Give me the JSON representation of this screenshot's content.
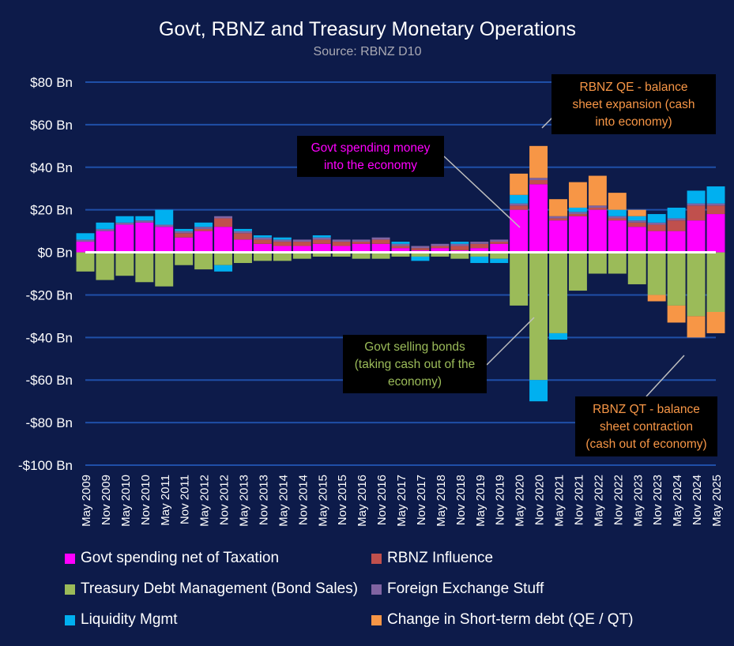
{
  "chart_data": {
    "type": "area",
    "title": "Govt, RBNZ and Treasury Monetary Operations",
    "subtitle": "Source: RBNZ D10",
    "ylabel": "",
    "xlabel": "",
    "ylim": [
      -100,
      80
    ],
    "ytick_values": [
      80,
      60,
      40,
      20,
      0,
      -20,
      -40,
      -60,
      -80,
      -100
    ],
    "ytick_labels": [
      "$80 Bn",
      "$60 Bn",
      "$40 Bn",
      "$20 Bn",
      "$0 Bn",
      "-$20 Bn",
      "-$40 Bn",
      "-$60 Bn",
      "-$80 Bn",
      "-$100 Bn"
    ],
    "xtick_labels": [
      "May 2009",
      "Nov 2009",
      "May 2010",
      "Nov 2010",
      "May 2011",
      "Nov 2011",
      "May 2012",
      "Nov 2012",
      "May 2013",
      "Nov 2013",
      "May 2014",
      "Nov 2014",
      "May 2015",
      "Nov 2015",
      "May 2016",
      "Nov 2016",
      "May 2017",
      "Nov 2017",
      "May 2018",
      "Nov 2018",
      "May 2019",
      "Nov 2019",
      "May 2020",
      "Nov 2020",
      "May 2021",
      "Nov 2021",
      "May 2022",
      "Nov 2022",
      "May 2023",
      "Nov 2023",
      "May 2024",
      "Nov 2024",
      "May 2025"
    ],
    "grid": true,
    "legend": "bottom",
    "colors": {
      "background": "#0d1b4a",
      "gridline": "#1f4fa8",
      "zeroline": "#ffffff",
      "govt": "#ff00ff",
      "rbnz": "#c0504d",
      "treasury": "#9bbb59",
      "fx": "#8064a2",
      "liquidity": "#00b0f0",
      "shortterm": "#f79646"
    },
    "series": [
      {
        "name": "Govt spending net of Taxation",
        "key": "govt",
        "values": [
          5,
          10,
          13,
          14,
          12,
          7,
          10,
          12,
          6,
          4,
          3,
          3,
          4,
          3,
          4,
          4,
          2,
          1,
          2,
          1,
          2,
          4,
          20,
          32,
          15,
          17,
          20,
          15,
          12,
          10,
          10,
          15,
          18
        ]
      },
      {
        "name": "RBNZ Influence",
        "key": "rbnz",
        "values": [
          0,
          0,
          0,
          0,
          0,
          2,
          1,
          4,
          3,
          2,
          2,
          2,
          2,
          2,
          1,
          2,
          1,
          1,
          1,
          2,
          2,
          1,
          2,
          2,
          1,
          1,
          1,
          1,
          2,
          3,
          5,
          7,
          4
        ]
      },
      {
        "name": "Treasury Debt Management (Bond Sales)",
        "key": "treasury",
        "values": [
          -9,
          -13,
          -11,
          -14,
          -16,
          -6,
          -8,
          -6,
          -5,
          -4,
          -4,
          -3,
          -2,
          -2,
          -3,
          -3,
          -2,
          -2,
          -2,
          -3,
          -2,
          -3,
          -25,
          -60,
          -38,
          -18,
          -10,
          -10,
          -15,
          -20,
          -25,
          -30,
          -28
        ]
      },
      {
        "name": "Foreign Exchange Stuff",
        "key": "fx",
        "values": [
          1,
          1,
          1,
          1,
          1,
          1,
          1,
          1,
          1,
          1,
          1,
          1,
          1,
          1,
          1,
          1,
          1,
          1,
          1,
          1,
          1,
          1,
          1,
          1,
          1,
          1,
          1,
          1,
          1,
          1,
          1,
          1,
          1
        ]
      },
      {
        "name": "Liquidity Mgmt",
        "key": "liquidity",
        "values": [
          3,
          3,
          3,
          2,
          7,
          1,
          2,
          -3,
          1,
          1,
          1,
          0,
          1,
          0,
          0,
          0,
          1,
          -2,
          0,
          1,
          -3,
          -2,
          4,
          -10,
          -3,
          2,
          0,
          3,
          2,
          4,
          5,
          6,
          8
        ]
      },
      {
        "name": "Change in Short-term debt (QE / QT)",
        "key": "shortterm",
        "values": [
          0,
          0,
          0,
          0,
          0,
          0,
          0,
          0,
          0,
          0,
          0,
          0,
          0,
          0,
          0,
          0,
          0,
          0,
          0,
          0,
          0,
          0,
          10,
          15,
          8,
          12,
          14,
          8,
          3,
          -3,
          -8,
          -10,
          -10
        ]
      }
    ],
    "annotations": [
      {
        "key": "qe",
        "text_lines": [
          "RBNZ QE - balance",
          "sheet expansion (cash",
          "into economy)"
        ],
        "color": "#f79646"
      },
      {
        "key": "govt",
        "text_lines": [
          "Govt spending money",
          "into the economy"
        ],
        "color": "#ff00ff"
      },
      {
        "key": "bonds",
        "text_lines": [
          "Govt selling bonds",
          "(taking cash out of the",
          "economy)"
        ],
        "color": "#9bbb59"
      },
      {
        "key": "qt",
        "text_lines": [
          "RBNZ QT - balance",
          "sheet contraction",
          "(cash out of economy)"
        ],
        "color": "#f79646"
      }
    ]
  }
}
